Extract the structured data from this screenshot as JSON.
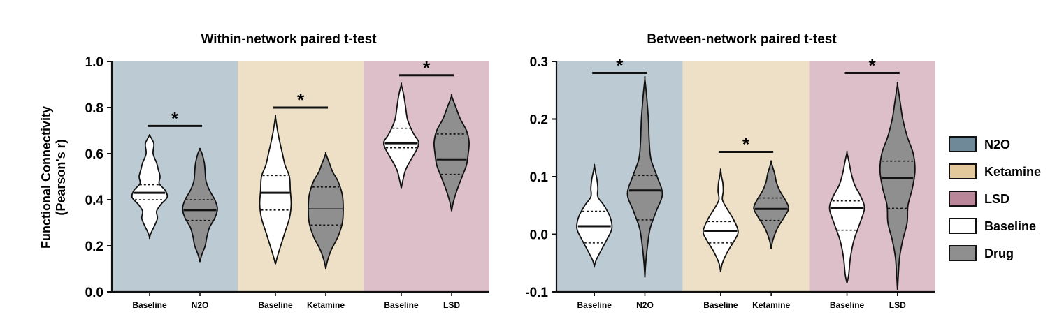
{
  "colors": {
    "n2o_bg": "#bccbd3",
    "ketamine_bg": "#ede0c6",
    "lsd_bg": "#dcbfc8",
    "n2o_legend": "#6f8998",
    "ketamine_legend": "#e2c89a",
    "lsd_legend": "#b98699",
    "baseline_fill": "#ffffff",
    "drug_fill": "#8f8f8f",
    "text": "#111111"
  },
  "y_axis_label_line1": "Functional Connectivity",
  "y_axis_label_line2": "(Pearson's r)",
  "legend": [
    {
      "label": "N2O",
      "color_key": "n2o_legend"
    },
    {
      "label": "Ketamine",
      "color_key": "ketamine_legend"
    },
    {
      "label": "LSD",
      "color_key": "lsd_legend"
    },
    {
      "label": "Baseline",
      "color_key": "baseline_fill"
    },
    {
      "label": "Drug",
      "color_key": "drug_fill"
    }
  ],
  "chart_data": [
    {
      "type": "violin",
      "title": "Within-network paired t-test",
      "ylabel": "Functional Connectivity (Pearson's r)",
      "ylim": [
        0,
        1.0
      ],
      "yticks": [
        "0.0",
        "0.2",
        "0.4",
        "0.6",
        "0.8",
        "1.0"
      ],
      "ytick_values": [
        0,
        0.2,
        0.4,
        0.6,
        0.8,
        1.0
      ],
      "groups": [
        {
          "name": "N2O",
          "bg_key": "n2o_bg",
          "significance": "*",
          "sig_y": 0.72
        },
        {
          "name": "Ketamine",
          "bg_key": "ketamine_bg",
          "significance": "*",
          "sig_y": 0.8
        },
        {
          "name": "LSD",
          "bg_key": "lsd_bg",
          "significance": "*",
          "sig_y": 0.94
        }
      ],
      "violins": [
        {
          "label": "Baseline",
          "group": 0,
          "fill": "baseline",
          "median": 0.43,
          "q1": 0.4,
          "q3": 0.465,
          "median_bold": true,
          "profile": [
            [
              0.23,
              0
            ],
            [
              0.25,
              0.05
            ],
            [
              0.29,
              0.3
            ],
            [
              0.32,
              0.45
            ],
            [
              0.35,
              0.4
            ],
            [
              0.38,
              0.65
            ],
            [
              0.41,
              1.0
            ],
            [
              0.44,
              0.9
            ],
            [
              0.47,
              0.55
            ],
            [
              0.5,
              0.6
            ],
            [
              0.53,
              0.5
            ],
            [
              0.56,
              0.4
            ],
            [
              0.6,
              0.2
            ],
            [
              0.64,
              0.25
            ],
            [
              0.66,
              0.15
            ],
            [
              0.68,
              0
            ]
          ]
        },
        {
          "label": "N2O",
          "group": 0,
          "fill": "drug",
          "median": 0.355,
          "q1": 0.31,
          "q3": 0.4,
          "median_bold": true,
          "profile": [
            [
              0.13,
              0
            ],
            [
              0.16,
              0.1
            ],
            [
              0.2,
              0.3
            ],
            [
              0.24,
              0.4
            ],
            [
              0.28,
              0.55
            ],
            [
              0.32,
              0.85
            ],
            [
              0.36,
              1.0
            ],
            [
              0.4,
              0.85
            ],
            [
              0.44,
              0.55
            ],
            [
              0.48,
              0.35
            ],
            [
              0.52,
              0.3
            ],
            [
              0.56,
              0.25
            ],
            [
              0.6,
              0.12
            ],
            [
              0.62,
              0
            ]
          ]
        },
        {
          "label": "Baseline",
          "group": 1,
          "fill": "baseline",
          "median": 0.43,
          "q1": 0.355,
          "q3": 0.505,
          "median_bold": true,
          "profile": [
            [
              0.12,
              0
            ],
            [
              0.15,
              0.1
            ],
            [
              0.2,
              0.3
            ],
            [
              0.26,
              0.55
            ],
            [
              0.32,
              0.8
            ],
            [
              0.38,
              0.9
            ],
            [
              0.44,
              0.85
            ],
            [
              0.5,
              0.8
            ],
            [
              0.55,
              0.55
            ],
            [
              0.6,
              0.4
            ],
            [
              0.65,
              0.25
            ],
            [
              0.7,
              0.12
            ],
            [
              0.76,
              0
            ]
          ]
        },
        {
          "label": "Ketamine",
          "group": 1,
          "fill": "drug",
          "median": 0.36,
          "q1": 0.29,
          "q3": 0.455,
          "median_bold": false,
          "profile": [
            [
              0.1,
              0
            ],
            [
              0.13,
              0.08
            ],
            [
              0.18,
              0.3
            ],
            [
              0.24,
              0.7
            ],
            [
              0.3,
              0.95
            ],
            [
              0.36,
              1.0
            ],
            [
              0.42,
              0.95
            ],
            [
              0.48,
              0.7
            ],
            [
              0.52,
              0.4
            ],
            [
              0.56,
              0.2
            ],
            [
              0.6,
              0
            ]
          ]
        },
        {
          "label": "Baseline",
          "group": 2,
          "fill": "baseline",
          "median": 0.645,
          "q1": 0.625,
          "q3": 0.71,
          "median_bold": true,
          "profile": [
            [
              0.45,
              0
            ],
            [
              0.48,
              0.08
            ],
            [
              0.53,
              0.25
            ],
            [
              0.58,
              0.6
            ],
            [
              0.62,
              0.9
            ],
            [
              0.65,
              1.0
            ],
            [
              0.68,
              0.75
            ],
            [
              0.71,
              0.55
            ],
            [
              0.75,
              0.35
            ],
            [
              0.8,
              0.25
            ],
            [
              0.85,
              0.15
            ],
            [
              0.9,
              0
            ]
          ]
        },
        {
          "label": "LSD",
          "group": 2,
          "fill": "drug",
          "median": 0.575,
          "q1": 0.51,
          "q3": 0.685,
          "median_bold": true,
          "profile": [
            [
              0.35,
              0
            ],
            [
              0.39,
              0.1
            ],
            [
              0.44,
              0.3
            ],
            [
              0.5,
              0.6
            ],
            [
              0.55,
              0.85
            ],
            [
              0.6,
              0.95
            ],
            [
              0.65,
              1.0
            ],
            [
              0.7,
              0.85
            ],
            [
              0.75,
              0.5
            ],
            [
              0.8,
              0.25
            ],
            [
              0.85,
              0
            ]
          ]
        }
      ]
    },
    {
      "type": "violin",
      "title": "Between-network paired t-test",
      "ylim": [
        -0.1,
        0.3
      ],
      "yticks": [
        "-0.1",
        "0.0",
        "0.1",
        "0.2",
        "0.3"
      ],
      "ytick_values": [
        -0.1,
        0,
        0.1,
        0.2,
        0.3
      ],
      "groups": [
        {
          "name": "N2O",
          "bg_key": "n2o_bg",
          "significance": "*",
          "sig_y": 0.28
        },
        {
          "name": "Ketamine",
          "bg_key": "ketamine_bg",
          "significance": "*",
          "sig_y": 0.143
        },
        {
          "name": "LSD",
          "bg_key": "lsd_bg",
          "significance": "*",
          "sig_y": 0.28
        }
      ],
      "violins": [
        {
          "label": "Baseline",
          "group": 0,
          "fill": "baseline",
          "median": 0.014,
          "q1": -0.015,
          "q3": 0.04,
          "median_bold": true,
          "profile": [
            [
              -0.055,
              0
            ],
            [
              -0.045,
              0.1
            ],
            [
              -0.03,
              0.35
            ],
            [
              -0.01,
              0.7
            ],
            [
              0.01,
              1.0
            ],
            [
              0.03,
              0.9
            ],
            [
              0.05,
              0.55
            ],
            [
              0.065,
              0.2
            ],
            [
              0.08,
              0.2
            ],
            [
              0.095,
              0.15
            ],
            [
              0.11,
              0.05
            ],
            [
              0.12,
              0
            ]
          ]
        },
        {
          "label": "N2O",
          "group": 0,
          "fill": "drug",
          "median": 0.076,
          "q1": 0.025,
          "q3": 0.102,
          "median_bold": true,
          "profile": [
            [
              -0.075,
              0
            ],
            [
              -0.05,
              0.05
            ],
            [
              -0.02,
              0.15
            ],
            [
              0.01,
              0.3
            ],
            [
              0.04,
              0.65
            ],
            [
              0.07,
              1.0
            ],
            [
              0.1,
              0.7
            ],
            [
              0.13,
              0.35
            ],
            [
              0.16,
              0.25
            ],
            [
              0.2,
              0.2
            ],
            [
              0.24,
              0.1
            ],
            [
              0.27,
              0
            ]
          ]
        },
        {
          "label": "Baseline",
          "group": 1,
          "fill": "baseline",
          "median": 0.006,
          "q1": -0.015,
          "q3": 0.022,
          "median_bold": true,
          "profile": [
            [
              -0.065,
              0
            ],
            [
              -0.05,
              0.1
            ],
            [
              -0.03,
              0.4
            ],
            [
              -0.01,
              0.8
            ],
            [
              0.005,
              1.0
            ],
            [
              0.025,
              0.75
            ],
            [
              0.045,
              0.35
            ],
            [
              0.06,
              0.1
            ],
            [
              0.075,
              0.15
            ],
            [
              0.09,
              0.12
            ],
            [
              0.1,
              0.05
            ],
            [
              0.112,
              0
            ]
          ]
        },
        {
          "label": "Ketamine",
          "group": 1,
          "fill": "drug",
          "median": 0.044,
          "q1": 0.024,
          "q3": 0.063,
          "median_bold": true,
          "profile": [
            [
              -0.025,
              0
            ],
            [
              -0.01,
              0.1
            ],
            [
              0.01,
              0.35
            ],
            [
              0.03,
              0.75
            ],
            [
              0.045,
              1.0
            ],
            [
              0.06,
              0.8
            ],
            [
              0.075,
              0.5
            ],
            [
              0.09,
              0.3
            ],
            [
              0.105,
              0.2
            ],
            [
              0.125,
              0
            ]
          ]
        },
        {
          "label": "Baseline",
          "group": 2,
          "fill": "baseline",
          "median": 0.046,
          "q1": 0.007,
          "q3": 0.058,
          "median_bold": true,
          "profile": [
            [
              -0.085,
              0
            ],
            [
              -0.07,
              0.1
            ],
            [
              -0.04,
              0.2
            ],
            [
              -0.01,
              0.4
            ],
            [
              0.02,
              0.75
            ],
            [
              0.045,
              1.0
            ],
            [
              0.065,
              0.8
            ],
            [
              0.085,
              0.45
            ],
            [
              0.105,
              0.25
            ],
            [
              0.125,
              0.12
            ],
            [
              0.142,
              0
            ]
          ]
        },
        {
          "label": "LSD",
          "group": 2,
          "fill": "drug",
          "median": 0.097,
          "q1": 0.045,
          "q3": 0.127,
          "median_bold": true,
          "profile": [
            [
              -0.097,
              0
            ],
            [
              -0.07,
              0.05
            ],
            [
              -0.04,
              0.12
            ],
            [
              -0.01,
              0.3
            ],
            [
              0.02,
              0.55
            ],
            [
              0.05,
              0.6
            ],
            [
              0.08,
              0.85
            ],
            [
              0.11,
              1.0
            ],
            [
              0.14,
              0.9
            ],
            [
              0.17,
              0.55
            ],
            [
              0.2,
              0.3
            ],
            [
              0.23,
              0.15
            ],
            [
              0.26,
              0
            ]
          ]
        }
      ]
    }
  ]
}
